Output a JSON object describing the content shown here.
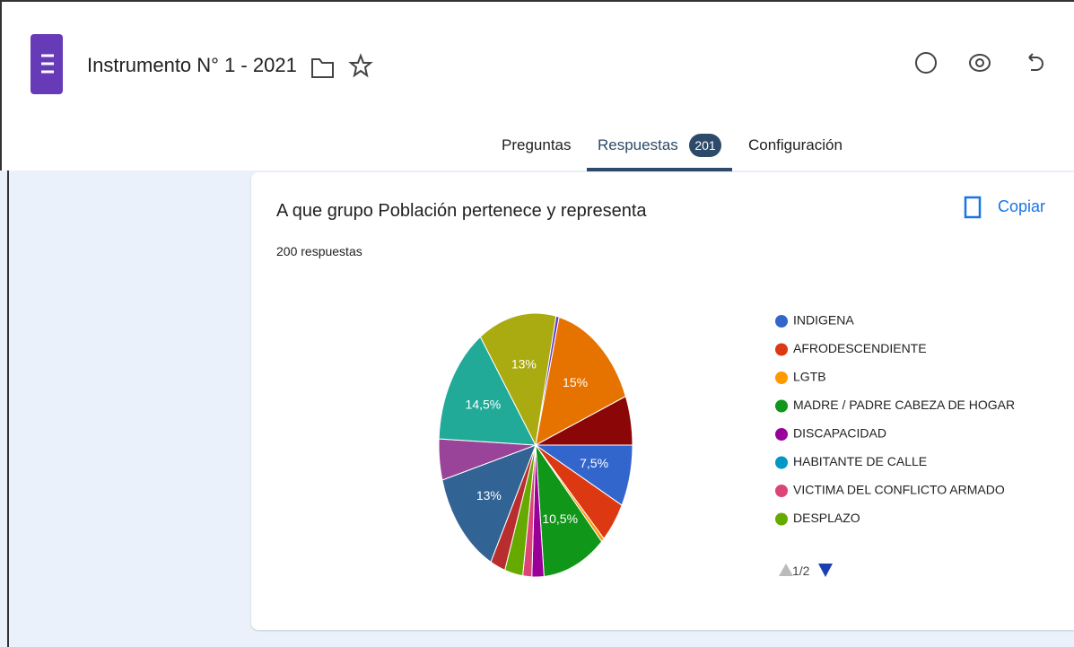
{
  "header": {
    "title": "Instrumento N° 1 - 2021"
  },
  "tabs": [
    "Preguntas",
    "Respuestas",
    "Configuración"
  ],
  "response_badge": 201,
  "card": {
    "title": "A que grupo Población pertenece y representa",
    "subtitle": "200 respuestas",
    "copy_button": "Copiar",
    "legend_page": "1/2",
    "chart_data": {
      "type": "pie",
      "categories": [
        "INDIGENA",
        "AFRODESCENDIENTE",
        "LGTB",
        "MADRE / PADRE CABEZA DE HOGAR",
        "DISCAPACIDAD",
        "HABITANTE DE CALLE",
        "VICTIMA DEL CONFLICTO ARMADO",
        "DESPLAZO",
        null,
        null,
        null,
        null,
        null,
        null,
        null,
        null
      ],
      "values": [
        7.5,
        5,
        0.5,
        10.5,
        2,
        0,
        1.5,
        3,
        2.5,
        13,
        5,
        14.5,
        13,
        0.5,
        15,
        6
      ],
      "value_labels": [
        "7,5%",
        null,
        null,
        "10,5%",
        null,
        null,
        null,
        null,
        null,
        "13%",
        null,
        "14,5%",
        "13%",
        null,
        "15%",
        null
      ],
      "colors": [
        "#3366cc",
        "#dc3912",
        "#ff9900",
        "#109618",
        "#990099",
        "#0099c6",
        "#dd4477",
        "#66aa00",
        "#b82e2e",
        "#316395",
        "#994499",
        "#22aa99",
        "#aaaa11",
        "#6633cc",
        "#e67300",
        "#8b0707"
      ],
      "start_angle": 90
    }
  }
}
